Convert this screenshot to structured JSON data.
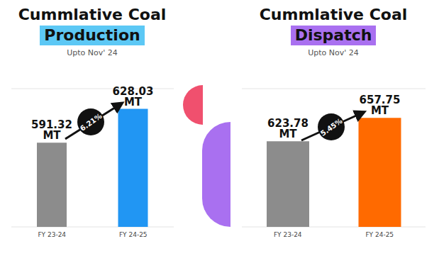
{
  "chart_data": [
    {
      "type": "bar",
      "title": "Cummlative Coal Production",
      "subtitle": "Upto Nov' 24",
      "categories": [
        "FY 23-24",
        "FY 24-25"
      ],
      "values": [
        591.32,
        628.03
      ],
      "value_labels": [
        "591.32 MT",
        "628.03 MT"
      ],
      "colors": [
        "#8c8c8c",
        "#2196f3"
      ],
      "ylim": [
        500,
        650
      ],
      "yticks": [
        500,
        550,
        600,
        650
      ],
      "grid": true,
      "data_labels": true,
      "tick_labels": "x",
      "annotations": [
        "6.21%"
      ]
    },
    {
      "type": "bar",
      "title": "Cummlative Coal Dispatch",
      "subtitle": "Upto Nov' 24",
      "categories": [
        "FY 23-24",
        "FY 24-25"
      ],
      "values": [
        623.78,
        657.75
      ],
      "value_labels": [
        "623.78 MT",
        "657.75 MT"
      ],
      "colors": [
        "#8c8c8c",
        "#ff6a00"
      ],
      "ylim": [
        500,
        700
      ],
      "yticks": [
        500,
        550,
        600,
        650,
        700
      ],
      "grid": true,
      "data_labels": true,
      "tick_labels": "x",
      "annotations": [
        "5.45%"
      ]
    }
  ]
}
